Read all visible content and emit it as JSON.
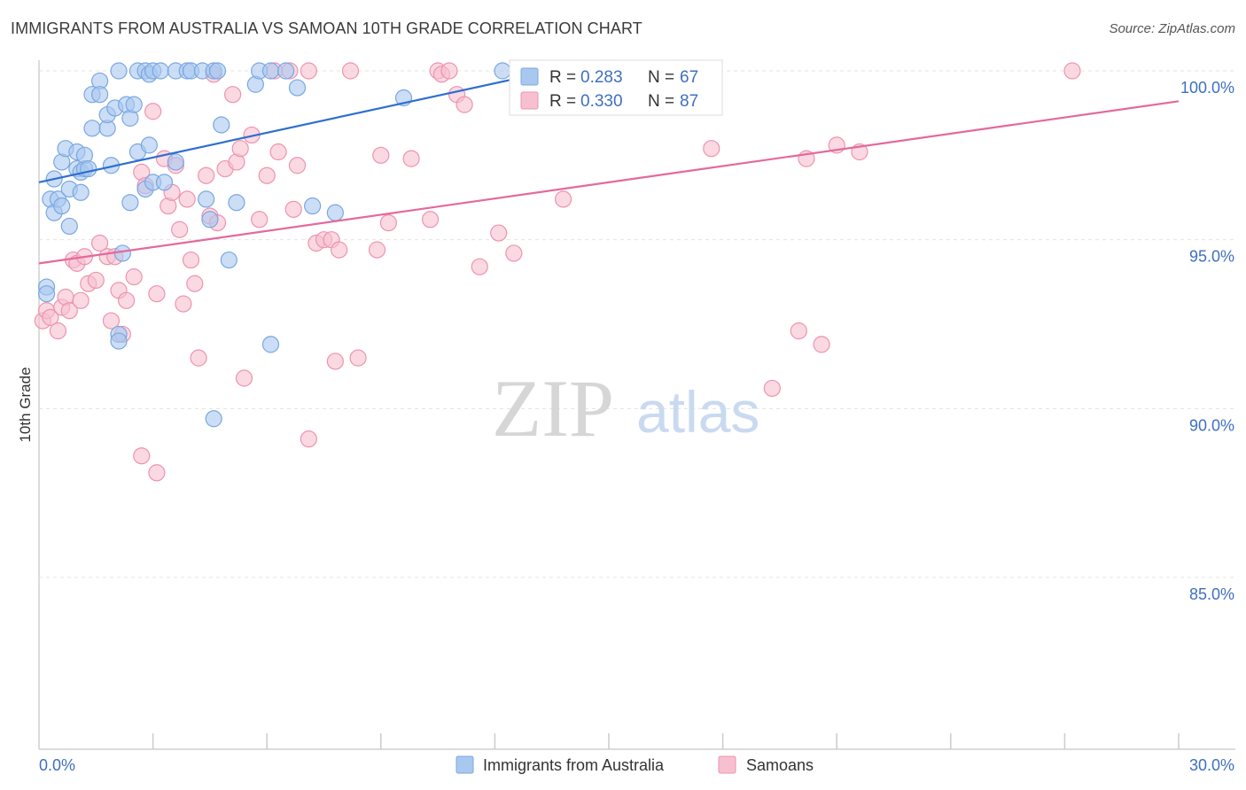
{
  "header": {
    "title": "IMMIGRANTS FROM AUSTRALIA VS SAMOAN 10TH GRADE CORRELATION CHART",
    "source": "Source: ZipAtlas.com"
  },
  "watermark": {
    "zip": "ZIP",
    "atlas": "atlas"
  },
  "colors": {
    "blue_fill": "#a9c8f0",
    "blue_stroke": "#7aa7e0",
    "blue_line": "#2f6fcf",
    "pink_fill": "#f7c0d0",
    "pink_stroke": "#ee93ae",
    "pink_line": "#e4699a",
    "grid": "#e3e3e3",
    "tick_text": "#3f6fc0"
  },
  "stats_box": {
    "rows": [
      {
        "r_label": "R =",
        "r_value": "0.283",
        "n_label": "N =",
        "n_value": "67"
      },
      {
        "r_label": "R =",
        "r_value": "0.330",
        "n_label": "N =",
        "n_value": "87"
      }
    ]
  },
  "chart_data": {
    "type": "scatter",
    "title": "IMMIGRANTS FROM AUSTRALIA VS SAMOAN 10TH GRADE CORRELATION CHART",
    "xlabel": "",
    "ylabel": "10th Grade",
    "xlim": [
      0,
      30
    ],
    "ylim": [
      80.5,
      100.5
    ],
    "x_tick_labels": [
      "0.0%",
      "30.0%"
    ],
    "y_ticks": [
      85,
      90,
      95,
      100
    ],
    "y_tick_labels": [
      "85.0%",
      "90.0%",
      "95.0%",
      "100.0%"
    ],
    "grid": true,
    "legend_position": "bottom-center",
    "series": [
      {
        "name": "Immigrants from Australia",
        "color": "#a9c8f0",
        "R": 0.283,
        "N": 67,
        "trend": {
          "x": [
            0,
            13.5
          ],
          "y": [
            96.7,
            100.0
          ]
        },
        "points": [
          [
            0.2,
            93.6
          ],
          [
            0.2,
            93.4
          ],
          [
            0.3,
            96.2
          ],
          [
            0.4,
            95.8
          ],
          [
            0.4,
            96.8
          ],
          [
            0.5,
            96.2
          ],
          [
            0.6,
            96.0
          ],
          [
            0.6,
            97.3
          ],
          [
            0.7,
            97.7
          ],
          [
            0.8,
            96.5
          ],
          [
            0.8,
            95.4
          ],
          [
            1.0,
            97.6
          ],
          [
            1.0,
            97.1
          ],
          [
            1.1,
            96.4
          ],
          [
            1.1,
            97.0
          ],
          [
            1.2,
            97.1
          ],
          [
            1.2,
            97.5
          ],
          [
            1.3,
            97.1
          ],
          [
            1.4,
            99.3
          ],
          [
            1.4,
            98.3
          ],
          [
            1.6,
            99.7
          ],
          [
            1.6,
            99.3
          ],
          [
            1.8,
            98.3
          ],
          [
            1.8,
            98.7
          ],
          [
            1.9,
            97.2
          ],
          [
            2.0,
            98.9
          ],
          [
            2.1,
            100.0
          ],
          [
            2.2,
            94.6
          ],
          [
            2.3,
            99.0
          ],
          [
            2.4,
            98.6
          ],
          [
            2.4,
            96.1
          ],
          [
            2.5,
            99.0
          ],
          [
            2.6,
            100.0
          ],
          [
            2.6,
            97.6
          ],
          [
            2.8,
            100.0
          ],
          [
            2.8,
            96.5
          ],
          [
            2.9,
            99.9
          ],
          [
            2.9,
            97.8
          ],
          [
            3.0,
            100.0
          ],
          [
            3.0,
            96.7
          ],
          [
            3.2,
            100.0
          ],
          [
            3.3,
            96.7
          ],
          [
            3.6,
            97.3
          ],
          [
            3.6,
            100.0
          ],
          [
            3.9,
            100.0
          ],
          [
            4.0,
            100.0
          ],
          [
            4.3,
            100.0
          ],
          [
            4.4,
            96.2
          ],
          [
            4.5,
            95.6
          ],
          [
            4.6,
            100.0
          ],
          [
            4.7,
            100.0
          ],
          [
            4.8,
            98.4
          ],
          [
            5.0,
            94.4
          ],
          [
            5.2,
            96.1
          ],
          [
            5.7,
            99.6
          ],
          [
            5.8,
            100.0
          ],
          [
            6.1,
            100.0
          ],
          [
            6.5,
            100.0
          ],
          [
            6.8,
            99.5
          ],
          [
            7.2,
            96.0
          ],
          [
            7.8,
            95.8
          ],
          [
            9.6,
            99.2
          ],
          [
            12.2,
            100.0
          ],
          [
            2.1,
            92.2
          ],
          [
            2.1,
            92.0
          ],
          [
            6.1,
            91.9
          ],
          [
            4.6,
            89.7
          ]
        ]
      },
      {
        "name": "Samoans",
        "color": "#f7c0d0",
        "R": 0.33,
        "N": 87,
        "trend": {
          "x": [
            0,
            30
          ],
          "y": [
            94.3,
            99.1
          ]
        },
        "points": [
          [
            0.1,
            92.6
          ],
          [
            0.2,
            92.9
          ],
          [
            0.3,
            92.7
          ],
          [
            0.5,
            92.3
          ],
          [
            0.6,
            93.0
          ],
          [
            0.7,
            93.3
          ],
          [
            0.8,
            92.9
          ],
          [
            0.9,
            94.4
          ],
          [
            1.0,
            94.3
          ],
          [
            1.1,
            93.2
          ],
          [
            1.2,
            94.5
          ],
          [
            1.3,
            93.7
          ],
          [
            1.5,
            93.8
          ],
          [
            1.6,
            94.9
          ],
          [
            1.8,
            94.5
          ],
          [
            1.9,
            92.6
          ],
          [
            2.0,
            94.5
          ],
          [
            2.1,
            93.5
          ],
          [
            2.2,
            92.2
          ],
          [
            2.3,
            93.2
          ],
          [
            2.5,
            93.9
          ],
          [
            2.7,
            97.0
          ],
          [
            2.8,
            96.6
          ],
          [
            3.0,
            98.8
          ],
          [
            3.1,
            93.4
          ],
          [
            3.3,
            97.4
          ],
          [
            3.4,
            96.0
          ],
          [
            3.5,
            96.4
          ],
          [
            3.6,
            97.2
          ],
          [
            3.7,
            95.3
          ],
          [
            3.8,
            93.1
          ],
          [
            3.9,
            96.2
          ],
          [
            4.0,
            94.4
          ],
          [
            4.1,
            93.7
          ],
          [
            4.2,
            91.5
          ],
          [
            4.4,
            96.9
          ],
          [
            4.5,
            95.7
          ],
          [
            4.6,
            99.9
          ],
          [
            4.7,
            95.5
          ],
          [
            4.9,
            97.1
          ],
          [
            5.1,
            99.3
          ],
          [
            5.2,
            97.3
          ],
          [
            5.3,
            97.7
          ],
          [
            5.4,
            90.9
          ],
          [
            5.6,
            98.1
          ],
          [
            5.8,
            95.6
          ],
          [
            6.0,
            96.9
          ],
          [
            6.2,
            100.0
          ],
          [
            6.3,
            97.6
          ],
          [
            6.6,
            100.0
          ],
          [
            6.7,
            95.9
          ],
          [
            6.8,
            97.2
          ],
          [
            7.1,
            100.0
          ],
          [
            7.3,
            94.9
          ],
          [
            7.5,
            95.0
          ],
          [
            7.7,
            95.0
          ],
          [
            7.8,
            91.4
          ],
          [
            7.9,
            94.7
          ],
          [
            8.2,
            100.0
          ],
          [
            8.4,
            91.5
          ],
          [
            8.9,
            94.7
          ],
          [
            9.0,
            97.5
          ],
          [
            9.2,
            95.5
          ],
          [
            9.8,
            97.4
          ],
          [
            10.3,
            95.6
          ],
          [
            10.5,
            100.0
          ],
          [
            10.6,
            99.9
          ],
          [
            10.8,
            100.0
          ],
          [
            11.0,
            99.3
          ],
          [
            11.2,
            99.0
          ],
          [
            11.6,
            94.2
          ],
          [
            12.1,
            95.2
          ],
          [
            12.5,
            94.6
          ],
          [
            13.8,
            96.2
          ],
          [
            14.0,
            100.0
          ],
          [
            17.7,
            97.7
          ],
          [
            19.3,
            90.6
          ],
          [
            20.0,
            92.3
          ],
          [
            20.2,
            97.4
          ],
          [
            20.6,
            91.9
          ],
          [
            21.0,
            97.8
          ],
          [
            21.6,
            97.6
          ],
          [
            27.2,
            100.0
          ],
          [
            3.1,
            88.1
          ],
          [
            2.7,
            88.6
          ],
          [
            7.1,
            89.1
          ],
          [
            13.2,
            100.0
          ]
        ]
      }
    ]
  }
}
